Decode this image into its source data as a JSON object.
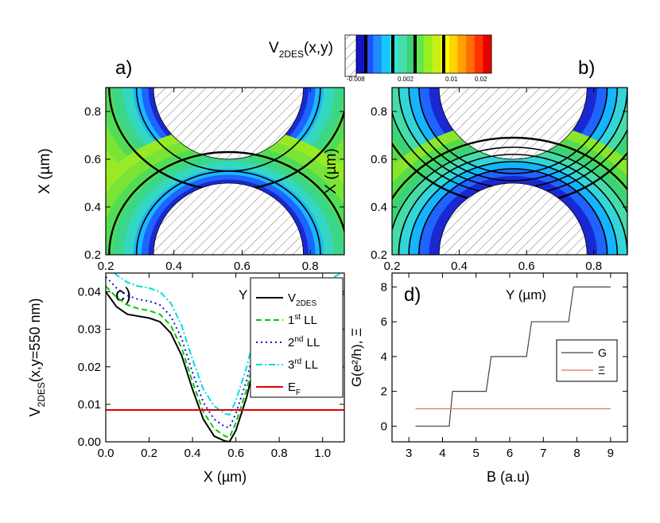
{
  "colorbar": {
    "title_main": "V",
    "title_sub": "2DES",
    "title_tail": "(x,y)",
    "tick_labels": [
      "-0.008",
      "0.002",
      "0.01",
      "0.02"
    ],
    "colors": [
      "#1414c8",
      "#1e50ff",
      "#1e8cff",
      "#14c8ff",
      "#32e6d2",
      "#46dcaa",
      "#3cd278",
      "#64e650",
      "#96f01e",
      "#c8f014",
      "#ffff00",
      "#ffd200",
      "#ffa000",
      "#ff6e00",
      "#ff3200",
      "#e60000"
    ]
  },
  "chart_data": [
    {
      "id": "a",
      "panel_label": "a)",
      "type": "heatmap",
      "xlabel": "Y (µm)",
      "ylabel": "X (µm)",
      "xlim": [
        0.2,
        0.9
      ],
      "ylim": [
        0.2,
        0.9
      ],
      "x_ticks": [
        "0.2",
        "0.4",
        "0.6",
        "0.8"
      ],
      "y_ticks": [
        "0.2",
        "0.4",
        "0.6",
        "0.8"
      ],
      "gates": [
        {
          "cx": 0.56,
          "cy": 0.9,
          "rx": 0.22,
          "ry": 0.3
        },
        {
          "cx": 0.56,
          "cy": 0.2,
          "rx": 0.22,
          "ry": 0.3
        }
      ],
      "background_color": "#a6ee1e",
      "incompressible_region": false
    },
    {
      "id": "b",
      "panel_label": "b)",
      "type": "heatmap",
      "xlabel": "Y (µm)",
      "ylabel": "X (µm)",
      "xlim": [
        0.2,
        0.9
      ],
      "ylim": [
        0.2,
        0.9
      ],
      "x_ticks": [
        "0.2",
        "0.4",
        "0.6",
        "0.8"
      ],
      "y_ticks": [
        "0.2",
        "0.4",
        "0.6",
        "0.8"
      ],
      "gates": [
        {
          "cx": 0.56,
          "cy": 0.9,
          "rx": 0.22,
          "ry": 0.3
        },
        {
          "cx": 0.56,
          "cy": 0.2,
          "rx": 0.22,
          "ry": 0.3
        }
      ],
      "background_color": "#000000",
      "incompressible_region": true
    },
    {
      "id": "c",
      "panel_label": "c)",
      "type": "line",
      "xlabel": "X (µm)",
      "ylabel_main": "V",
      "ylabel_sub": "2DES",
      "ylabel_tail": "(x,y=550 nm)",
      "xlim": [
        0.0,
        1.1
      ],
      "ylim": [
        0.0,
        0.045
      ],
      "x_ticks": [
        "0.0",
        "0.2",
        "0.4",
        "0.6",
        "0.8",
        "1.0"
      ],
      "y_ticks": [
        "0.00",
        "0.01",
        "0.02",
        "0.03",
        "0.04"
      ],
      "series": [
        {
          "name": "V",
          "name_sup": "",
          "name_sub": "2DES",
          "name_tail": "",
          "color": "#000000",
          "dash": "",
          "x": [
            0.0,
            0.05,
            0.1,
            0.15,
            0.2,
            0.25,
            0.3,
            0.35,
            0.4,
            0.45,
            0.5,
            0.55,
            0.57,
            0.6,
            0.65,
            0.7
          ],
          "y": [
            0.04,
            0.036,
            0.034,
            0.0335,
            0.033,
            0.032,
            0.029,
            0.023,
            0.014,
            0.006,
            0.0015,
            0.0002,
            0.0,
            0.003,
            0.012,
            0.024
          ]
        },
        {
          "name": "1",
          "name_sup": "st",
          "name_sub": "",
          "name_tail": " LL",
          "color": "#00cc00",
          "dash": "7,4",
          "x": [
            0.0,
            0.05,
            0.1,
            0.15,
            0.2,
            0.25,
            0.3,
            0.35,
            0.4,
            0.45,
            0.5,
            0.55,
            0.57,
            0.6,
            0.65,
            0.7,
            1.1
          ],
          "y": [
            0.0415,
            0.0385,
            0.0365,
            0.0355,
            0.035,
            0.034,
            0.031,
            0.025,
            0.016,
            0.008,
            0.0035,
            0.0015,
            0.0012,
            0.005,
            0.014,
            0.026,
            0.0395
          ]
        },
        {
          "name": "2",
          "name_sup": "nd",
          "name_sub": "",
          "name_tail": " LL",
          "color": "#1010dd",
          "dash": "2,4",
          "x": [
            0.0,
            0.05,
            0.1,
            0.15,
            0.2,
            0.25,
            0.3,
            0.35,
            0.4,
            0.45,
            0.5,
            0.55,
            0.57,
            0.6,
            0.65,
            0.7,
            1.1
          ],
          "y": [
            0.044,
            0.041,
            0.039,
            0.038,
            0.0375,
            0.0365,
            0.0335,
            0.0275,
            0.0185,
            0.0105,
            0.006,
            0.004,
            0.0038,
            0.0075,
            0.0165,
            0.0285,
            0.042
          ]
        },
        {
          "name": "3",
          "name_sup": "rd",
          "name_sub": "",
          "name_tail": " LL",
          "color": "#00dddd",
          "dash": "8,3,2,3",
          "x": [
            0.0,
            0.05,
            0.1,
            0.15,
            0.2,
            0.25,
            0.3,
            0.35,
            0.4,
            0.45,
            0.5,
            0.55,
            0.57,
            0.6,
            0.65,
            0.7,
            1.1
          ],
          "y": [
            0.0475,
            0.0445,
            0.0425,
            0.0415,
            0.041,
            0.04,
            0.037,
            0.031,
            0.022,
            0.014,
            0.0095,
            0.0075,
            0.0072,
            0.011,
            0.02,
            0.032,
            0.0455
          ]
        },
        {
          "name": "E",
          "name_sup": "",
          "name_sub": "F",
          "name_tail": "",
          "color": "#e00000",
          "dash": "",
          "x": [
            0.0,
            1.1
          ],
          "y": [
            0.0085,
            0.0085
          ]
        }
      ]
    },
    {
      "id": "d",
      "panel_label": "d)",
      "type": "line",
      "xlabel": "B (a.u)",
      "ylabel": "G(e²/h), Ξ",
      "xlim": [
        2.5,
        9.5
      ],
      "ylim": [
        -0.9,
        8.8
      ],
      "x_ticks": [
        "3",
        "4",
        "5",
        "6",
        "7",
        "8",
        "9"
      ],
      "y_ticks": [
        "0",
        "2",
        "4",
        "6",
        "8"
      ],
      "overlay_axis_label": "Y (µm)",
      "series": [
        {
          "name": "G",
          "color": "#444444",
          "x": [
            3.2,
            4.2,
            4.3,
            5.3,
            5.45,
            6.5,
            6.65,
            7.75,
            7.9,
            9.0
          ],
          "y": [
            0,
            0,
            2,
            2,
            4,
            4,
            6,
            6,
            8,
            8
          ]
        },
        {
          "name": "Ξ",
          "color": "#e07070",
          "x": [
            3.2,
            9.0
          ],
          "y": [
            1,
            1
          ]
        }
      ]
    }
  ]
}
